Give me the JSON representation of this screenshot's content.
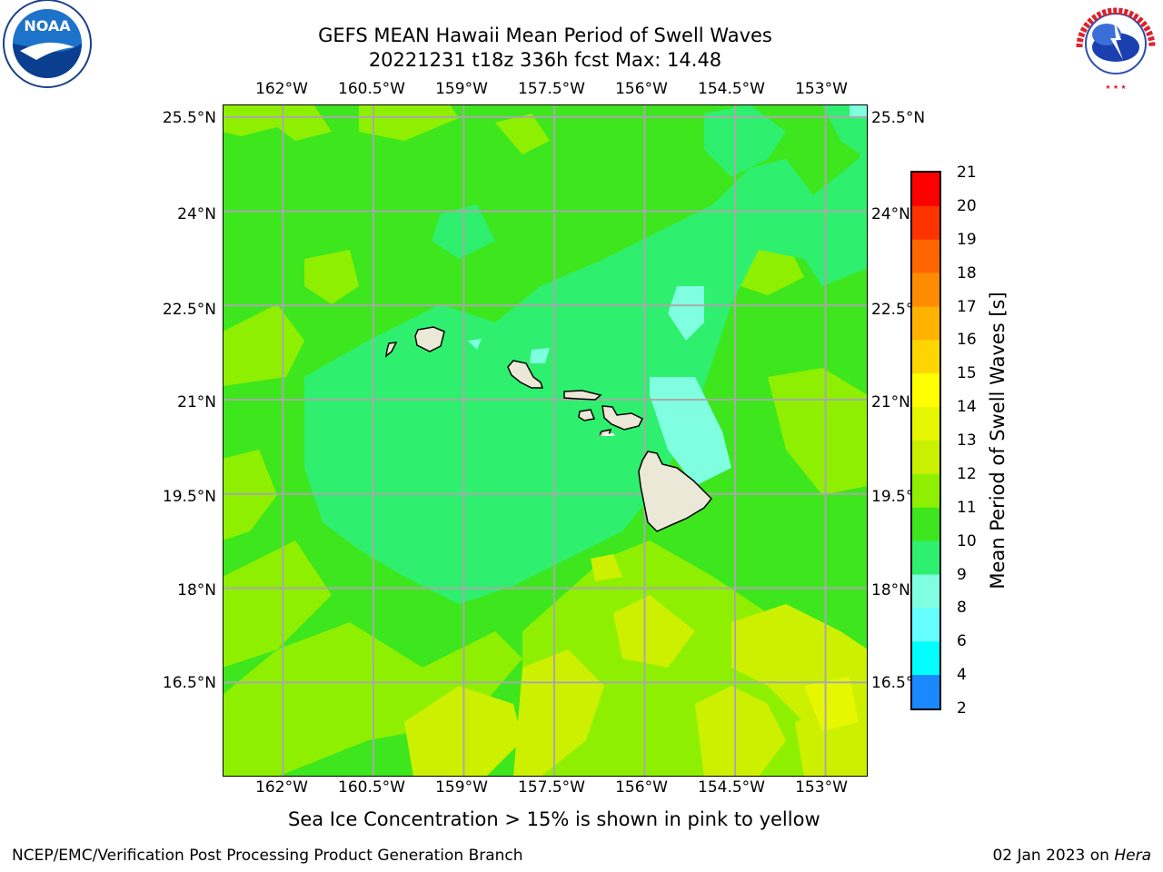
{
  "title_line1": "GEFS MEAN Hawaii Mean Period of Swell Waves",
  "title_line2": "20221231 t18z 336h fcst   Max: 14.48",
  "logos": {
    "left": "noaa-logo",
    "right": "national-weather-service-logo",
    "left_text": "NOAA",
    "right_text": "NATIONAL WEATHER SERVICE"
  },
  "map": {
    "lon_labels": [
      "162°W",
      "160.5°W",
      "159°W",
      "157.5°W",
      "156°W",
      "154.5°W",
      "153°W"
    ],
    "lon_values": [
      -162,
      -160.5,
      -159,
      -157.5,
      -156,
      -154.5,
      -153
    ],
    "lat_labels": [
      "25.5°N",
      "24°N",
      "22.5°N",
      "21°N",
      "19.5°N",
      "18°N",
      "16.5°N"
    ],
    "lat_values": [
      25.5,
      24,
      22.5,
      21,
      19.5,
      18,
      16.5
    ],
    "lon_range": [
      -163,
      -152.3
    ],
    "lat_range": [
      15,
      25.7
    ],
    "islands": [
      "Niihau",
      "Kauai",
      "Oahu",
      "Molokai",
      "Lanai",
      "Maui",
      "Kahoolawe",
      "Hawaii"
    ]
  },
  "colorbar": {
    "label": "Mean Period of Swell Waves [s]",
    "ticks": [
      "21",
      "20",
      "19",
      "18",
      "17",
      "16",
      "15",
      "14",
      "13",
      "12",
      "11",
      "10",
      "9",
      "8",
      "6",
      "4",
      "2"
    ],
    "colors": [
      "#ff0000",
      "#ff3300",
      "#ff6600",
      "#ff8c00",
      "#ffb300",
      "#ffd500",
      "#ffff00",
      "#e6f700",
      "#c8f000",
      "#8ef000",
      "#3ee61e",
      "#2ef06e",
      "#80ffe0",
      "#66ffff",
      "#00ffff",
      "#1a88ff",
      "#0040ff",
      "#0000ff"
    ]
  },
  "subtitle": "Sea Ice Concentration > 15% is shown in pink to yellow",
  "footer_left": "NCEP/EMC/Verification Post Processing Product Generation Branch",
  "footer_date": "02 Jan 2023 on ",
  "footer_host": "Hera"
}
